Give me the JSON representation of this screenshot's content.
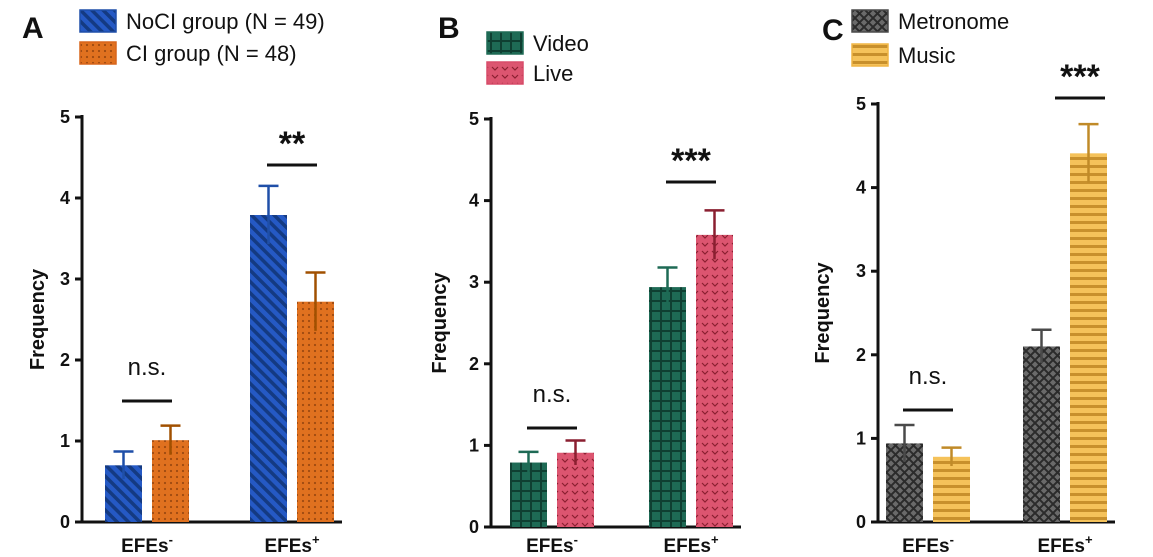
{
  "chart_data": [
    {
      "panel": "A",
      "type": "bar",
      "ylabel": "Frequency",
      "ylim": [
        0,
        5
      ],
      "yticks": [
        "0",
        "1",
        "2",
        "3",
        "4",
        "5"
      ],
      "categories": [
        {
          "label": "EFEs",
          "sup": "-"
        },
        {
          "label": "EFEs",
          "sup": "+"
        }
      ],
      "series": [
        {
          "name": "NoCI group (N = 49)",
          "values": [
            0.7,
            3.79
          ],
          "errors": [
            0.17,
            0.36
          ],
          "color": "#1f4fa8",
          "errColor": "#1f4fa8",
          "pattern": "diag"
        },
        {
          "name": "CI group (N = 48)",
          "values": [
            1.01,
            2.72
          ],
          "errors": [
            0.18,
            0.36
          ],
          "color": "#d9661c",
          "errColor": "#a15000",
          "pattern": "dots"
        }
      ],
      "significance": [
        "n.s.",
        "**"
      ],
      "legend": "top-left"
    },
    {
      "panel": "B",
      "type": "bar",
      "ylabel": "Frequency",
      "ylim": [
        0,
        5
      ],
      "yticks": [
        "0",
        "1",
        "2",
        "3",
        "4",
        "5"
      ],
      "categories": [
        {
          "label": "EFEs",
          "sup": "-"
        },
        {
          "label": "EFEs",
          "sup": "+"
        }
      ],
      "series": [
        {
          "name": "Video",
          "values": [
            0.79,
            2.94
          ],
          "errors": [
            0.13,
            0.24
          ],
          "color": "#1e6a55",
          "errColor": "#1e6a55",
          "pattern": "grid"
        },
        {
          "name": "Live",
          "values": [
            0.91,
            3.58
          ],
          "errors": [
            0.15,
            0.3
          ],
          "color": "#d94d6a",
          "errColor": "#8a1f30",
          "pattern": "chevron"
        }
      ],
      "significance": [
        "n.s.",
        "***"
      ],
      "legend": "top-left"
    },
    {
      "panel": "C",
      "type": "bar",
      "ylabel": "Frequency",
      "ylim": [
        0,
        5
      ],
      "yticks": [
        "0",
        "1",
        "2",
        "3",
        "4",
        "5"
      ],
      "categories": [
        {
          "label": "EFEs",
          "sup": "-"
        },
        {
          "label": "EFEs",
          "sup": "+"
        }
      ],
      "series": [
        {
          "name": "Metronome",
          "values": [
            0.94,
            2.1
          ],
          "errors": [
            0.22,
            0.2
          ],
          "color": "#4a4a4a",
          "errColor": "#4a4a4a",
          "pattern": "cross"
        },
        {
          "name": "Music",
          "values": [
            0.78,
            4.41
          ],
          "errors": [
            0.11,
            0.35
          ],
          "color": "#f0b545",
          "errColor": "#c08a28",
          "pattern": "hstripe"
        }
      ],
      "significance": [
        "n.s.",
        "***"
      ],
      "legend": "top-left"
    }
  ]
}
